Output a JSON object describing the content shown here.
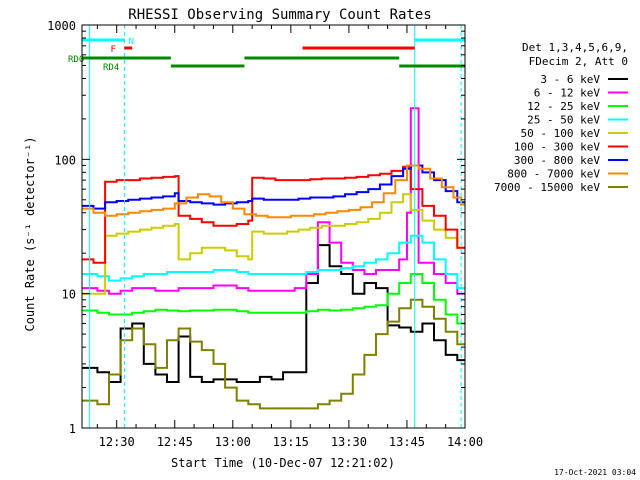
{
  "chart_data": {
    "type": "line",
    "title": "RHESSI Observing Summary Count Rates",
    "xlabel": "Start Time (10-Dec-07 12:21:02)",
    "ylabel": "Count Rate (s⁻¹ detector⁻¹)",
    "y_scale": "log",
    "ylim": [
      1,
      1000
    ],
    "xlim": [
      "12:21:02",
      "14:00:00"
    ],
    "x_ticks": [
      "12:30",
      "12:45",
      "13:00",
      "13:15",
      "13:30",
      "13:45",
      "14:00"
    ],
    "y_ticks": [
      "1",
      "10",
      "100",
      "1000"
    ],
    "grid": false,
    "legend_position": "right",
    "legend_header": [
      "Det 1,3,4,5,6,9,",
      "FDecim 2, Att 0"
    ],
    "timestamp": "17-Oct-2021 03:04",
    "series": [
      {
        "name": "3 - 6 keV",
        "color": "#000000",
        "x": [
          "12:21",
          "12:25",
          "12:28",
          "12:31",
          "12:34",
          "12:37",
          "12:40",
          "12:43",
          "12:46",
          "12:49",
          "12:52",
          "12:55",
          "12:58",
          "13:01",
          "13:04",
          "13:07",
          "13:10",
          "13:13",
          "13:16",
          "13:19",
          "13:22",
          "13:25",
          "13:28",
          "13:31",
          "13:34",
          "13:37",
          "13:40",
          "13:43",
          "13:46",
          "13:49",
          "13:52",
          "13:55",
          "13:58"
        ],
        "y": [
          2.8,
          2.6,
          2.2,
          5.5,
          6.0,
          3.0,
          2.5,
          2.2,
          4.8,
          2.4,
          2.2,
          2.3,
          2.3,
          2.2,
          2.2,
          2.4,
          2.3,
          2.6,
          2.6,
          12,
          23,
          16,
          14,
          10,
          12,
          11,
          5.8,
          5.6,
          5.2,
          6,
          4.5,
          3.5,
          3.2
        ]
      },
      {
        "name": "6 - 12 keV",
        "color": "#ff00ff",
        "x": [
          "12:21",
          "12:25",
          "12:28",
          "12:31",
          "12:34",
          "12:37",
          "12:40",
          "12:43",
          "12:46",
          "12:49",
          "12:52",
          "12:55",
          "12:58",
          "13:01",
          "13:04",
          "13:07",
          "13:10",
          "13:13",
          "13:16",
          "13:19",
          "13:22",
          "13:25",
          "13:28",
          "13:31",
          "13:34",
          "13:37",
          "13:40",
          "13:43",
          "13:45",
          "13:46",
          "13:48",
          "13:52",
          "13:55",
          "13:58"
        ],
        "y": [
          11,
          10.5,
          10,
          10.5,
          11,
          11,
          10.5,
          10.5,
          11,
          11,
          11,
          11.5,
          11.5,
          11,
          10.5,
          10.5,
          10.5,
          10.5,
          11,
          14,
          34,
          24,
          17,
          15,
          14,
          15,
          15,
          18,
          40,
          240,
          17,
          14,
          12,
          10
        ]
      },
      {
        "name": "12 - 25 keV",
        "color": "#00ff00",
        "x": [
          "12:21",
          "12:25",
          "12:28",
          "12:31",
          "12:34",
          "12:37",
          "12:40",
          "12:43",
          "12:46",
          "12:49",
          "12:52",
          "12:55",
          "12:58",
          "13:01",
          "13:04",
          "13:07",
          "13:10",
          "13:13",
          "13:16",
          "13:19",
          "13:22",
          "13:25",
          "13:28",
          "13:31",
          "13:34",
          "13:37",
          "13:40",
          "13:43",
          "13:46",
          "13:49",
          "13:52",
          "13:55",
          "13:58"
        ],
        "y": [
          7.5,
          7.2,
          7.0,
          7.0,
          7.2,
          7.4,
          7.6,
          7.5,
          7.4,
          7.5,
          7.5,
          7.6,
          7.6,
          7.4,
          7.2,
          7.2,
          7.2,
          7.2,
          7.2,
          7.4,
          7.6,
          7.5,
          7.6,
          7.8,
          8,
          8.2,
          10,
          12,
          14,
          12,
          9,
          7,
          6
        ]
      },
      {
        "name": "25 - 50 keV",
        "color": "#00ffff",
        "x": [
          "12:21",
          "12:25",
          "12:28",
          "12:31",
          "12:34",
          "12:37",
          "12:40",
          "12:43",
          "12:46",
          "12:49",
          "12:52",
          "12:55",
          "12:58",
          "13:01",
          "13:04",
          "13:07",
          "13:10",
          "13:13",
          "13:16",
          "13:19",
          "13:22",
          "13:25",
          "13:28",
          "13:31",
          "13:34",
          "13:37",
          "13:40",
          "13:43",
          "13:46",
          "13:49",
          "13:52",
          "13:55",
          "13:58"
        ],
        "y": [
          14,
          13.5,
          12.5,
          13,
          13.5,
          14,
          14,
          14.5,
          14.5,
          14.5,
          14.5,
          15,
          15,
          14.5,
          14,
          14,
          14,
          14,
          14,
          14.5,
          15,
          15,
          15.5,
          16,
          17,
          18,
          20,
          24,
          27,
          24,
          18,
          14,
          11
        ]
      },
      {
        "name": "50 - 100 keV",
        "color": "#cccc00",
        "x": [
          "12:21",
          "12:24",
          "12:27",
          "12:30",
          "12:33",
          "12:36",
          "12:39",
          "12:42",
          "12:45",
          "12:46",
          "12:49",
          "12:52",
          "12:55",
          "12:58",
          "13:01",
          "13:04",
          "13:05",
          "13:08",
          "13:11",
          "13:14",
          "13:17",
          "13:20",
          "13:23",
          "13:26",
          "13:29",
          "13:32",
          "13:35",
          "13:38",
          "13:41",
          "13:44",
          "13:46",
          "13:49",
          "13:52",
          "13:55",
          "13:58"
        ],
        "y": [
          10,
          10,
          27,
          28,
          29,
          30,
          31,
          32,
          33,
          18,
          20,
          22,
          22,
          21,
          19,
          18,
          29,
          28,
          28,
          29,
          30,
          31,
          32,
          32,
          33,
          34,
          36,
          40,
          48,
          55,
          42,
          35,
          30,
          26,
          22
        ]
      },
      {
        "name": "100 - 300 keV",
        "color": "#ff0000",
        "x": [
          "12:21",
          "12:24",
          "12:27",
          "12:30",
          "12:33",
          "12:36",
          "12:39",
          "12:42",
          "12:45",
          "12:46",
          "12:49",
          "12:52",
          "12:55",
          "12:58",
          "13:01",
          "13:04",
          "13:05",
          "13:08",
          "13:11",
          "13:14",
          "13:17",
          "13:20",
          "13:23",
          "13:26",
          "13:29",
          "13:32",
          "13:35",
          "13:38",
          "13:41",
          "13:44",
          "13:46",
          "13:49",
          "13:52",
          "13:55",
          "13:58"
        ],
        "y": [
          18,
          17,
          68,
          70,
          70,
          72,
          73,
          74,
          75,
          38,
          36,
          34,
          32,
          32,
          33,
          35,
          73,
          72,
          70,
          70,
          70,
          71,
          72,
          72,
          73,
          74,
          76,
          78,
          82,
          88,
          60,
          45,
          38,
          30,
          22
        ]
      },
      {
        "name": "300 - 800 keV",
        "color": "#0000ff",
        "x": [
          "12:21",
          "12:24",
          "12:27",
          "12:30",
          "12:33",
          "12:36",
          "12:39",
          "12:42",
          "12:45",
          "12:46",
          "12:49",
          "12:52",
          "12:55",
          "12:58",
          "13:01",
          "13:04",
          "13:05",
          "13:08",
          "13:11",
          "13:14",
          "13:17",
          "13:20",
          "13:23",
          "13:26",
          "13:29",
          "13:32",
          "13:35",
          "13:38",
          "13:41",
          "13:44",
          "13:46",
          "13:49",
          "13:52",
          "13:55",
          "13:58"
        ],
        "y": [
          45,
          43,
          48,
          49,
          50,
          51,
          52,
          53,
          56,
          49,
          48,
          47,
          46,
          47,
          48,
          49,
          51,
          50,
          50,
          50,
          51,
          52,
          52,
          53,
          55,
          57,
          60,
          65,
          75,
          85,
          90,
          80,
          70,
          58,
          48
        ]
      },
      {
        "name": "800 - 7000 keV",
        "color": "#ff8800",
        "x": [
          "12:21",
          "12:24",
          "12:27",
          "12:30",
          "12:33",
          "12:36",
          "12:39",
          "12:42",
          "12:45",
          "12:48",
          "12:51",
          "12:54",
          "12:57",
          "13:00",
          "13:03",
          "13:06",
          "13:09",
          "13:12",
          "13:15",
          "13:18",
          "13:21",
          "13:24",
          "13:27",
          "13:30",
          "13:33",
          "13:36",
          "13:39",
          "13:42",
          "13:45",
          "13:48",
          "13:51",
          "13:54",
          "13:57",
          "13:59"
        ],
        "y": [
          43,
          40,
          38,
          39,
          40,
          41,
          42,
          43,
          47,
          52,
          55,
          53,
          48,
          43,
          39,
          38,
          37,
          37,
          38,
          38,
          39,
          40,
          41,
          42,
          44,
          48,
          56,
          70,
          90,
          85,
          72,
          62,
          52,
          46
        ]
      },
      {
        "name": "7000 - 15000 keV",
        "color": "#808000",
        "x": [
          "12:21",
          "12:25",
          "12:28",
          "12:31",
          "12:34",
          "12:37",
          "12:40",
          "12:43",
          "12:46",
          "12:49",
          "12:52",
          "12:55",
          "12:58",
          "13:01",
          "13:04",
          "13:07",
          "13:10",
          "13:13",
          "13:16",
          "13:19",
          "13:22",
          "13:25",
          "13:28",
          "13:31",
          "13:34",
          "13:37",
          "13:40",
          "13:43",
          "13:46",
          "13:49",
          "13:52",
          "13:55",
          "13:58"
        ],
        "y": [
          1.6,
          1.5,
          2.5,
          4.5,
          5.5,
          4.2,
          2.8,
          4.5,
          5.5,
          4.4,
          3.8,
          3.0,
          2.0,
          1.6,
          1.5,
          1.4,
          1.4,
          1.4,
          1.4,
          1.4,
          1.5,
          1.6,
          1.8,
          2.5,
          3.5,
          5.0,
          6.2,
          7.8,
          9.0,
          8.0,
          6.5,
          5.2,
          4.2
        ]
      }
    ],
    "status_bars": [
      {
        "label": "N",
        "color": "#00ffff",
        "segments": [
          [
            "12:21",
            "12:32"
          ],
          [
            "13:47",
            "14:00"
          ]
        ]
      },
      {
        "label": "F",
        "color": "#ff0000",
        "segments": [
          [
            "12:32",
            "12:34"
          ],
          [
            "13:18",
            "13:47"
          ]
        ]
      },
      {
        "label": "RD0",
        "color": "#008800",
        "segments": [
          [
            "12:21",
            "12:44"
          ],
          [
            "13:03",
            "13:43"
          ]
        ]
      },
      {
        "label": "RD4",
        "color": "#008800",
        "segments": [
          [
            "12:44",
            "13:03"
          ],
          [
            "13:43",
            "14:00"
          ]
        ]
      }
    ],
    "vertical_markers": [
      {
        "time": "12:23",
        "color": "#00ffff",
        "style": "solid"
      },
      {
        "time": "12:32",
        "color": "#00ffff",
        "style": "dashed"
      },
      {
        "time": "13:47",
        "color": "#00ffff",
        "style": "solid"
      },
      {
        "time": "13:59",
        "color": "#00ffff",
        "style": "dashed"
      }
    ]
  }
}
